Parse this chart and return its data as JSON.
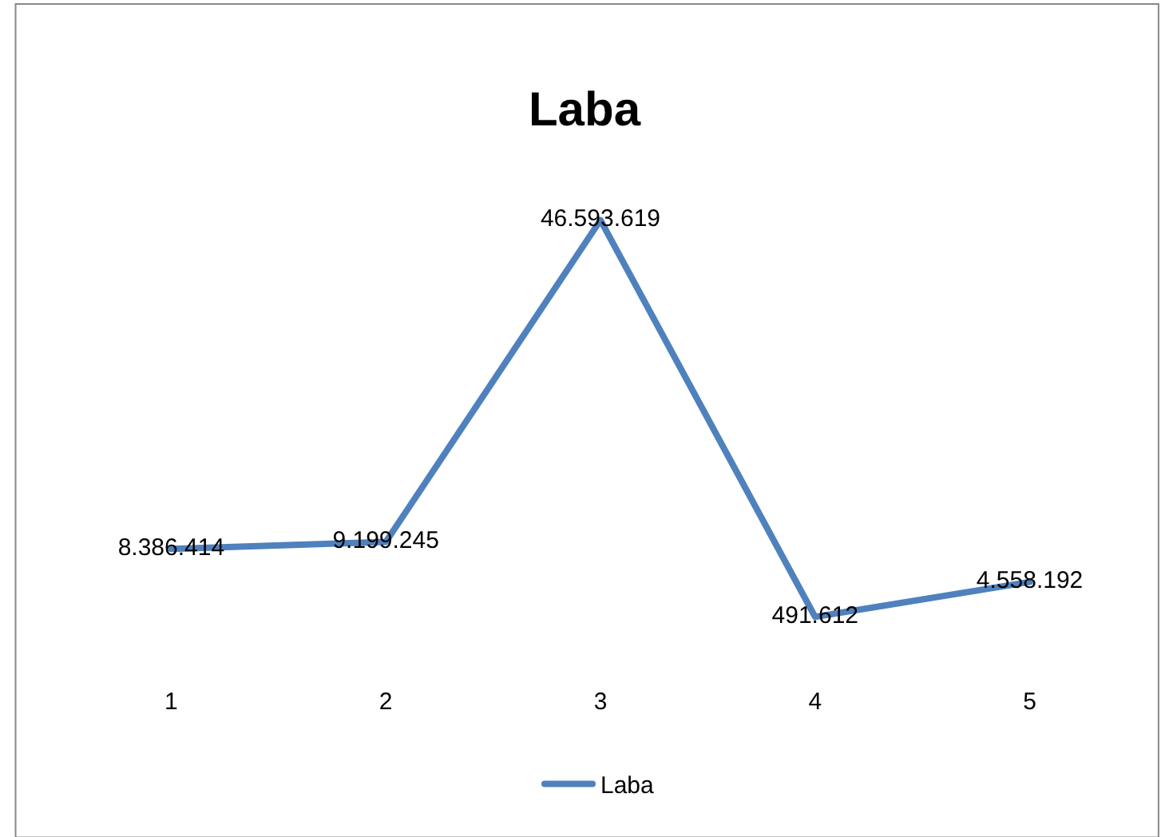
{
  "chart_data": {
    "type": "line",
    "title": "Laba",
    "categories": [
      "1",
      "2",
      "3",
      "4",
      "5"
    ],
    "series": [
      {
        "name": "Laba",
        "color": "#4f81bd",
        "values": [
          8386414,
          9199245,
          46593619,
          491612,
          4558192
        ],
        "value_labels": [
          "8.386.414",
          "9.199.245",
          "46.593.619",
          "491.612",
          "4.558.192"
        ]
      }
    ],
    "tick_labels": "x",
    "legend": "bottom",
    "marker": "none",
    "line_style": "solid"
  }
}
